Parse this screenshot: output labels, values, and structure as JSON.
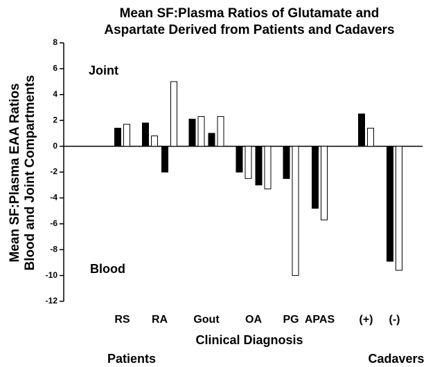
{
  "chart_data": {
    "type": "bar",
    "title": [
      "Mean SF:Plasma Ratios of Glutamate and",
      "Aspartate Derived from Patients and Cadavers"
    ],
    "y_label": [
      "Mean SF:Plasma EAA Ratios",
      "Blood and Joint Compartments"
    ],
    "x_label": "Clinical Diagnosis",
    "annotations": [
      "Joint",
      "Blood",
      "Patients",
      "Cadavers"
    ],
    "categories": [
      "RS",
      "RA",
      "Gout",
      "OA",
      "PG",
      "APAS",
      "(+)",
      "(-)"
    ],
    "series": [
      {
        "color": "#000000",
        "values": [
          [
            1.4
          ],
          [
            1.8,
            -2.0
          ],
          [
            2.1,
            1.0
          ],
          [
            -2.0,
            -3.0
          ],
          [
            -2.5
          ],
          [
            -4.8
          ],
          [
            2.5
          ],
          [
            -8.9
          ]
        ]
      },
      {
        "color": "#ffffff",
        "values": [
          [
            1.7
          ],
          [
            0.8,
            5.0
          ],
          [
            2.3,
            2.3
          ],
          [
            -2.5,
            -3.3
          ],
          [
            -10.0
          ],
          [
            -5.7
          ],
          [
            1.4
          ],
          [
            -9.6
          ]
        ]
      }
    ],
    "ylim": [
      -12,
      8
    ],
    "yticks": [
      -12,
      -10,
      -8,
      -6,
      -4,
      -2,
      0,
      2,
      4,
      6,
      8
    ]
  }
}
